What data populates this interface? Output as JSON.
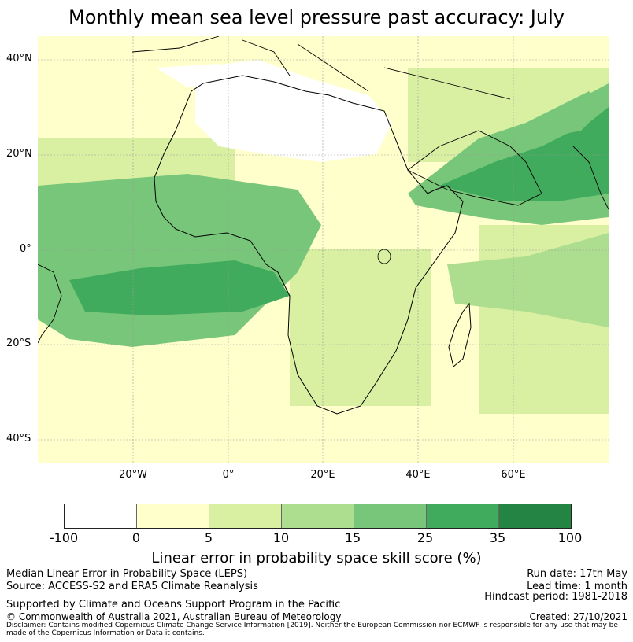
{
  "title": "Monthly mean sea level pressure past accuracy: July",
  "map": {
    "latitude_labels": [
      "40°N",
      "20°N",
      "0°",
      "20°S",
      "40°S"
    ],
    "longitude_labels": [
      "20°W",
      "0°",
      "20°E",
      "40°E",
      "60°E"
    ],
    "colors": {
      "ocean_base": "#ffffcc",
      "land_high_error": "#ffffff",
      "coastline": "#000000",
      "gridline": "#9a9a9a"
    }
  },
  "colorbar": {
    "ticks": [
      "-100",
      "0",
      "5",
      "10",
      "15",
      "25",
      "35",
      "100"
    ],
    "colors": [
      "#ffffff",
      "#ffffcc",
      "#d9f0a3",
      "#addd8e",
      "#78c679",
      "#41ab5d",
      "#238443"
    ],
    "label": "Linear error in probability space skill score (%)"
  },
  "footer": {
    "line1": "Median Linear Error in Probability Space (LEPS)",
    "line2": "Source: ACCESS-S2 and ERA5 Climate Reanalysis",
    "line3": "Supported by Climate and Oceans Support Program in the Pacific",
    "line4": "© Commonwealth of Australia 2021, Australian Bureau of Meteorology",
    "run_date": "Run date: 17th May",
    "lead_time": "Lead time: 1 month",
    "hindcast": "Hindcast period: 1981-2018",
    "created": "Created: 27/10/2021",
    "disclaimer": "Disclaimer: Contains modified Copernicus Climate Change Service Information [2019]. Neither the European Commission nor ECMWF is responsible for any use that may be made of the Copernicus Information or Data it contains."
  }
}
